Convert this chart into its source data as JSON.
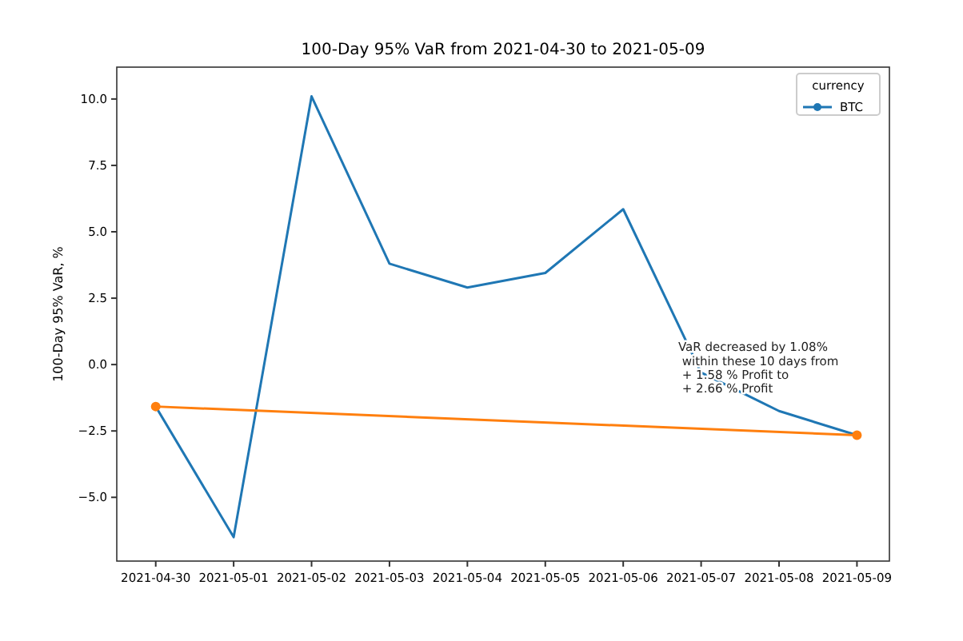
{
  "chart_data": {
    "type": "line",
    "title": "100-Day 95% VaR from 2021-04-30 to 2021-05-09",
    "ylabel": "100-Day 95% VaR, %",
    "x": [
      "2021-04-30",
      "2021-05-01",
      "2021-05-02",
      "2021-05-03",
      "2021-05-04",
      "2021-05-05",
      "2021-05-06",
      "2021-05-07",
      "2021-05-08",
      "2021-05-09"
    ],
    "series": [
      {
        "name": "BTC",
        "color": "#1f77b4",
        "marker": "none",
        "values": [
          -1.58,
          -6.5,
          10.1,
          3.8,
          2.9,
          3.45,
          5.85,
          -0.3,
          -1.75,
          -2.66
        ]
      },
      {
        "color": "#ff7f0e",
        "marker": "circle",
        "x": [
          "2021-04-30",
          "2021-05-09"
        ],
        "values": [
          -1.58,
          -2.66
        ]
      }
    ],
    "xlim": [
      "2021-04-29T12:00",
      "2021-05-09T10:00"
    ],
    "ylim": [
      -7.4,
      11.2
    ],
    "xticks": [
      {
        "value": "2021-04-30",
        "label": "2021-04-30"
      },
      {
        "value": "2021-05-01",
        "label": "2021-05-01"
      },
      {
        "value": "2021-05-02",
        "label": "2021-05-02"
      },
      {
        "value": "2021-05-03",
        "label": "2021-05-03"
      },
      {
        "value": "2021-05-04",
        "label": "2021-05-04"
      },
      {
        "value": "2021-05-05",
        "label": "2021-05-05"
      },
      {
        "value": "2021-05-06",
        "label": "2021-05-06"
      },
      {
        "value": "2021-05-07",
        "label": "2021-05-07"
      },
      {
        "value": "2021-05-08",
        "label": "2021-05-08"
      },
      {
        "value": "2021-05-09",
        "label": "2021-05-09"
      }
    ],
    "yticks": [
      {
        "value": -5,
        "label": "−5.0"
      },
      {
        "value": -2.5,
        "label": "−2.5"
      },
      {
        "value": 0,
        "label": "0.0"
      },
      {
        "value": 2.5,
        "label": "2.5"
      },
      {
        "value": 5,
        "label": "5.0"
      },
      {
        "value": 7.5,
        "label": "7.5"
      },
      {
        "value": 10,
        "label": "10.0"
      }
    ],
    "legend": "top right",
    "legend_title": "currency",
    "grid": false,
    "line_style": "solid",
    "annotations": [
      "VaR decreased by 1.08%\n within these 10 days from\n + 1.58 % Profit to\n + 2.66 % Profit"
    ]
  }
}
